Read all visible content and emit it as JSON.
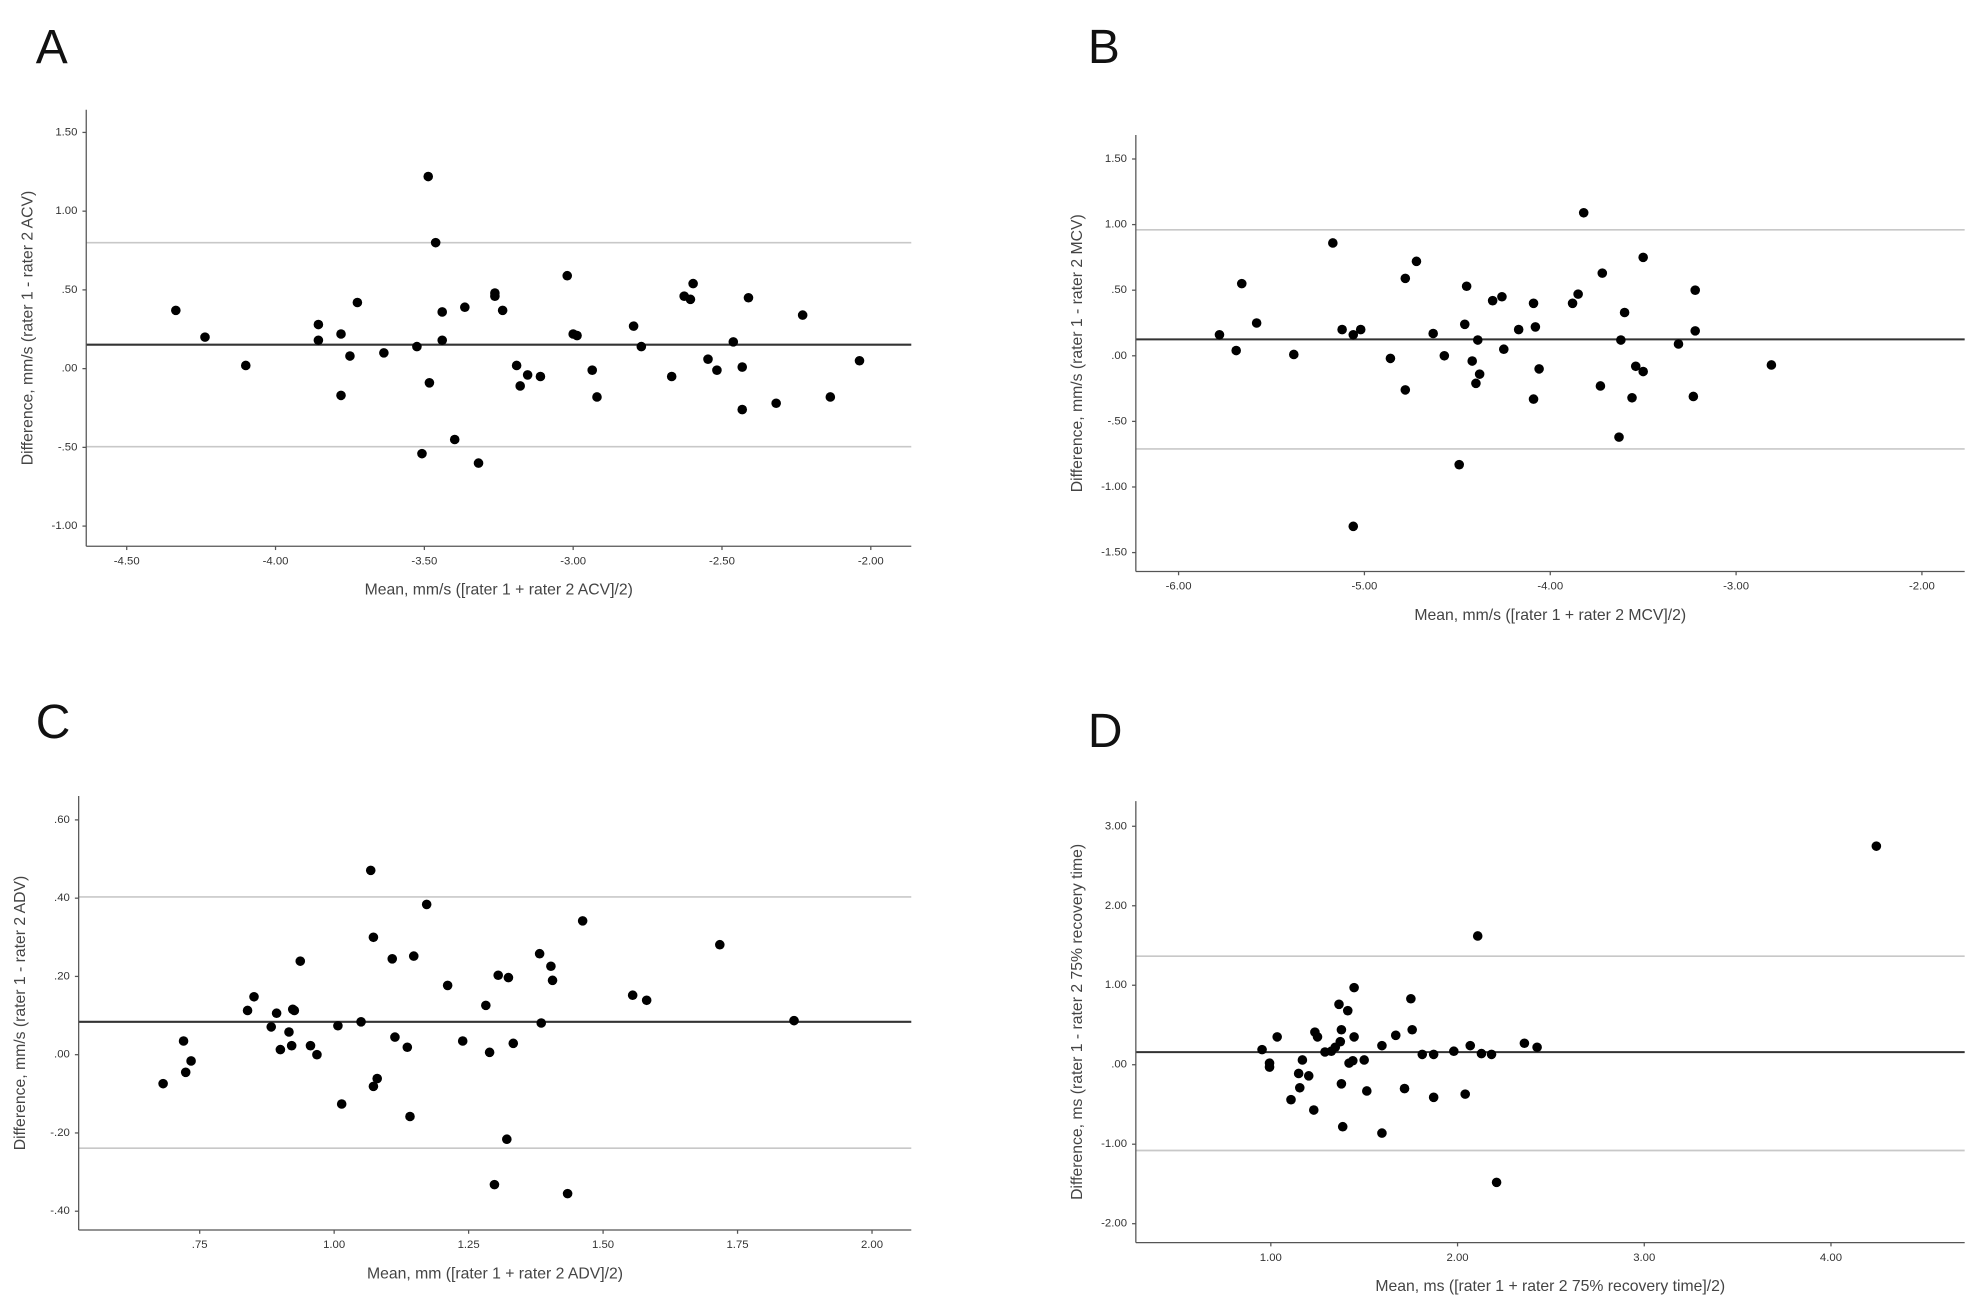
{
  "chart_data": [
    {
      "type": "scatter",
      "title": "A",
      "xlabel": "Mean, mm/s ([rater 1 + rater 2 ACV]/2)",
      "ylabel": "Difference, mm/s (rater 1 - rater 2 ACV)",
      "x": [
        -4.335,
        -4.237,
        -4.1,
        -3.856,
        -3.856,
        -3.78,
        -3.725,
        -3.75,
        -3.78,
        -3.636,
        -3.525,
        -3.487,
        -3.462,
        -3.44,
        -3.44,
        -3.483,
        -3.508,
        -3.398,
        -3.364,
        -3.318,
        -3.263,
        -3.263,
        -3.237,
        -3.19,
        -3.178,
        -3.153,
        -3.11,
        -3.02,
        -3.0,
        -2.987,
        -2.936,
        -2.92,
        -2.797,
        -2.771,
        -2.669,
        -2.627,
        -2.606,
        -2.597,
        -2.547,
        -2.517,
        -2.462,
        -2.432,
        -2.432,
        -2.411,
        -2.318,
        -2.229,
        -2.136,
        -2.038
      ],
      "values": [
        0.37,
        0.2,
        0.02,
        0.28,
        0.18,
        0.22,
        0.42,
        0.08,
        -0.17,
        0.1,
        0.14,
        1.22,
        0.8,
        0.36,
        0.18,
        -0.09,
        -0.54,
        -0.45,
        0.39,
        -0.6,
        0.48,
        0.46,
        0.37,
        0.02,
        -0.11,
        -0.04,
        -0.05,
        0.59,
        0.22,
        0.21,
        -0.01,
        -0.18,
        0.27,
        0.14,
        -0.05,
        0.46,
        0.44,
        0.54,
        0.06,
        -0.01,
        0.17,
        -0.26,
        0.01,
        0.45,
        -0.22,
        0.34,
        -0.18,
        0.05
      ],
      "color": "#000000",
      "mean_line": {
        "value": 0.152,
        "color": "#333333"
      },
      "limit_lines": {
        "values": [
          0.8,
          -0.496
        ],
        "color": "#c8c8c8"
      },
      "xlim": [
        -4.636,
        -1.864
      ],
      "ylim": [
        -1.128,
        1.644
      ],
      "xticks": [
        {
          "value": -4.5,
          "label": "-4.50"
        },
        {
          "value": -4,
          "label": "-4.00"
        },
        {
          "value": -3.5,
          "label": "-3.50"
        },
        {
          "value": -3,
          "label": "-3.00"
        },
        {
          "value": -2.5,
          "label": "-2.50"
        },
        {
          "value": -2,
          "label": "-2.00"
        }
      ],
      "yticks": [
        {
          "value": -1,
          "label": "-1.00"
        },
        {
          "value": -0.5,
          "label": "-.50"
        },
        {
          "value": 0,
          "label": ".00"
        },
        {
          "value": 0.5,
          "label": ".50"
        },
        {
          "value": 1,
          "label": "1.00"
        },
        {
          "value": 1.5,
          "label": "1.50"
        }
      ]
    },
    {
      "type": "scatter",
      "title": "B",
      "xlabel": "Mean, mm/s ([rater 1 + rater 2 MCV]/2)",
      "ylabel": "Difference, mm/s (rater 1 - rater 2 MCV)",
      "x": [
        -5.78,
        -5.69,
        -5.66,
        -5.58,
        -5.38,
        -5.17,
        -5.12,
        -5.06,
        -5.02,
        -5.06,
        -4.86,
        -4.78,
        -4.78,
        -4.72,
        -4.63,
        -4.57,
        -4.49,
        -4.46,
        -4.45,
        -4.42,
        -4.4,
        -4.38,
        -4.39,
        -4.31,
        -4.26,
        -4.25,
        -4.17,
        -4.09,
        -4.09,
        -4.08,
        -4.06,
        -3.88,
        -3.85,
        -3.82,
        -3.73,
        -3.72,
        -3.63,
        -3.62,
        -3.6,
        -3.56,
        -3.54,
        -3.5,
        -3.5,
        -3.31,
        -3.23,
        -3.22,
        -3.22,
        -2.81
      ],
      "values": [
        0.16,
        0.04,
        0.55,
        0.25,
        0.01,
        0.86,
        0.2,
        0.16,
        0.2,
        -1.3,
        -0.02,
        0.59,
        -0.26,
        0.72,
        0.17,
        0.0,
        -0.83,
        0.24,
        0.53,
        -0.04,
        -0.21,
        -0.14,
        0.12,
        0.42,
        0.45,
        0.05,
        0.2,
        -0.33,
        0.4,
        0.22,
        -0.1,
        0.4,
        0.47,
        1.09,
        -0.23,
        0.63,
        -0.62,
        0.12,
        0.33,
        -0.32,
        -0.08,
        0.75,
        -0.12,
        0.09,
        -0.31,
        0.5,
        0.19,
        -0.07
      ],
      "color": "#000000",
      "mean_line": {
        "value": 0.125,
        "color": "#333333"
      },
      "limit_lines": {
        "values": [
          0.96,
          -0.71
        ],
        "color": "#c8c8c8"
      },
      "xlim": [
        -6.23,
        -1.77
      ],
      "ylim": [
        -1.644,
        1.683
      ],
      "xticks": [
        {
          "value": -6,
          "label": "-6.00"
        },
        {
          "value": -5,
          "label": "-5.00"
        },
        {
          "value": -4,
          "label": "-4.00"
        },
        {
          "value": -3,
          "label": "-3.00"
        },
        {
          "value": -2,
          "label": "-2.00"
        }
      ],
      "yticks": [
        {
          "value": -1.5,
          "label": "-1.50"
        },
        {
          "value": -1,
          "label": "-1.00"
        },
        {
          "value": -0.5,
          "label": "-.50"
        },
        {
          "value": 0,
          "label": ".00"
        },
        {
          "value": 0.5,
          "label": ".50"
        },
        {
          "value": 1,
          "label": "1.00"
        },
        {
          "value": 1.5,
          "label": "1.50"
        }
      ]
    },
    {
      "type": "scatter",
      "title": "C",
      "xlabel": "Mean, mm ([rater 1 + rater 2 ADV]/2)",
      "ylabel": "Difference, mm/s (rater 1 - rater 2 ADV)",
      "x": [
        0.682,
        0.72,
        0.724,
        0.734,
        0.839,
        0.851,
        0.883,
        0.893,
        0.9,
        0.916,
        0.921,
        0.923,
        0.926,
        0.937,
        0.956,
        0.968,
        1.007,
        1.014,
        1.05,
        1.068,
        1.073,
        1.073,
        1.08,
        1.108,
        1.113,
        1.136,
        1.141,
        1.148,
        1.172,
        1.211,
        1.239,
        1.282,
        1.289,
        1.298,
        1.305,
        1.321,
        1.324,
        1.333,
        1.382,
        1.385,
        1.403,
        1.406,
        1.434,
        1.462,
        1.555,
        1.581,
        1.717,
        1.855
      ],
      "values": [
        -0.074,
        0.035,
        -0.045,
        -0.016,
        0.113,
        0.148,
        0.071,
        0.106,
        0.013,
        0.058,
        0.023,
        0.116,
        0.113,
        0.239,
        0.023,
        0.0,
        0.074,
        -0.126,
        0.084,
        0.471,
        0.3,
        -0.081,
        -0.061,
        0.245,
        0.045,
        0.019,
        -0.158,
        0.252,
        0.384,
        0.177,
        0.035,
        0.126,
        0.006,
        -0.332,
        0.203,
        -0.216,
        0.197,
        0.029,
        0.258,
        0.081,
        0.226,
        0.19,
        -0.355,
        0.342,
        0.152,
        0.139,
        0.281,
        0.087
      ],
      "color": "#000000",
      "mean_line": {
        "value": 0.084,
        "color": "#333333"
      },
      "limit_lines": {
        "values": [
          0.403,
          -0.239
        ],
        "color": "#c8c8c8"
      },
      "xlim": [
        0.525,
        2.073
      ],
      "ylim": [
        -0.448,
        0.661
      ],
      "xticks": [
        {
          "value": 0.75,
          "label": ".75"
        },
        {
          "value": 1,
          "label": "1.00"
        },
        {
          "value": 1.25,
          "label": "1.25"
        },
        {
          "value": 1.5,
          "label": "1.50"
        },
        {
          "value": 1.75,
          "label": "1.75"
        },
        {
          "value": 2,
          "label": "2.00"
        }
      ],
      "yticks": [
        {
          "value": -0.4,
          "label": "-.40"
        },
        {
          "value": -0.2,
          "label": "-.20"
        },
        {
          "value": 0,
          "label": ".00"
        },
        {
          "value": 0.2,
          "label": ".20"
        },
        {
          "value": 0.4,
          "label": ".40"
        },
        {
          "value": 0.6,
          "label": ".60"
        }
      ]
    },
    {
      "type": "scatter",
      "title": "D",
      "xlabel": "Mean, ms ([rater 1 + rater 2 75% recovery time]/2)",
      "ylabel": "Difference, ms (rater 1 - rater 2 75% recovery time)",
      "x": [
        0.953,
        0.993,
        0.993,
        1.034,
        1.108,
        1.149,
        1.155,
        1.169,
        1.203,
        1.23,
        1.236,
        1.25,
        1.29,
        1.324,
        1.345,
        1.365,
        1.372,
        1.378,
        1.378,
        1.385,
        1.412,
        1.419,
        1.439,
        1.446,
        1.446,
        1.5,
        1.514,
        1.595,
        1.595,
        1.669,
        1.716,
        1.75,
        1.757,
        1.811,
        1.872,
        1.872,
        1.98,
        2.041,
        2.068,
        2.108,
        2.128,
        2.182,
        2.209,
        2.358,
        2.426,
        4.243
      ],
      "values": [
        0.19,
        0.02,
        -0.03,
        0.35,
        -0.44,
        -0.11,
        -0.29,
        0.06,
        -0.14,
        -0.57,
        0.41,
        0.35,
        0.16,
        0.17,
        0.22,
        0.76,
        0.29,
        -0.24,
        0.44,
        -0.78,
        0.68,
        0.02,
        0.05,
        0.97,
        0.35,
        0.06,
        -0.33,
        0.24,
        -0.86,
        0.37,
        -0.3,
        0.83,
        0.44,
        0.13,
        0.13,
        -0.41,
        0.17,
        -0.37,
        0.24,
        1.62,
        0.14,
        0.13,
        -1.48,
        0.27,
        0.22,
        2.75
      ],
      "color": "#000000",
      "mean_line": {
        "value": 0.159,
        "color": "#333333"
      },
      "limit_lines": {
        "values": [
          1.365,
          -1.079
        ],
        "color": "#c8c8c8"
      },
      "xlim": [
        0.277,
        4.716
      ],
      "ylim": [
        -2.238,
        3.317
      ],
      "xticks": [
        {
          "value": 1,
          "label": "1.00"
        },
        {
          "value": 2,
          "label": "2.00"
        },
        {
          "value": 3,
          "label": "3.00"
        },
        {
          "value": 4,
          "label": "4.00"
        }
      ],
      "yticks": [
        {
          "value": -2,
          "label": "-2.00"
        },
        {
          "value": -1,
          "label": "-1.00"
        },
        {
          "value": 0,
          "label": ".00"
        },
        {
          "value": 1,
          "label": "1.00"
        },
        {
          "value": 2,
          "label": "2.00"
        },
        {
          "value": 3,
          "label": "3.00"
        }
      ]
    }
  ]
}
